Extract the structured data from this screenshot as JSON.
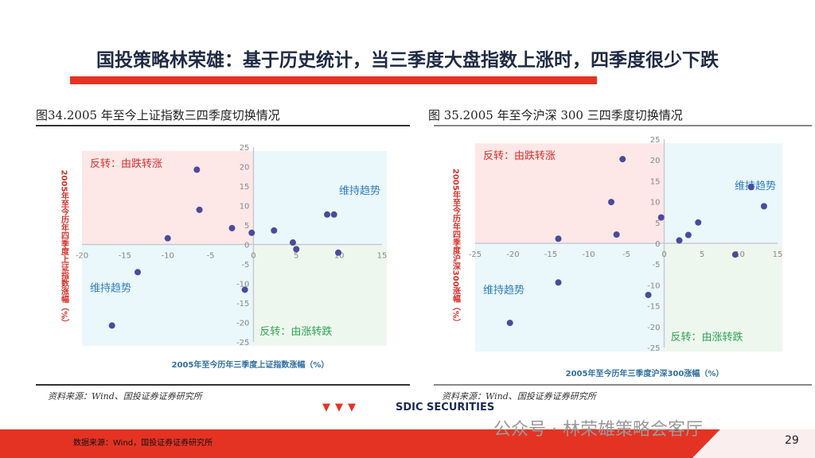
{
  "header": {
    "title": "国投策略林荣雄：基于历史统计，当三季度大盘指数上涨时，四季度很少下跌"
  },
  "colors": {
    "accent": "#e53323",
    "point": "#4b4a9c",
    "reverse_up": "#d6312b",
    "trend": "#2f7fbf",
    "reverse_down": "#2fa352",
    "q_pink": "#fde7e7",
    "q_cyan": "#eaf7fb",
    "q_green": "#eef7ee"
  },
  "footer": {
    "source": "数据来源：Wind，国投证券证券研究所",
    "page": "29",
    "watermark": "公众号 · 林荣雄策略会客厅",
    "logo": "SDIC SECURITIES",
    "logo_mark": "▼▼▼"
  },
  "chart_data": [
    {
      "type": "scatter",
      "title": "图34.2005 年至今上证指数三四季度切换情况",
      "xlabel": "2005年至今历年三季度上证指数涨幅（%）",
      "ylabel": "2005年至今历年四季度上证指数涨幅（%）",
      "xlim": [
        -20,
        15
      ],
      "ylim": [
        -25,
        25
      ],
      "xticks": [
        -20,
        -15,
        -10,
        -5,
        0,
        5,
        10,
        15
      ],
      "yticks": [
        25,
        20,
        15,
        10,
        5,
        0,
        -5,
        -10,
        -15,
        -20,
        -25
      ],
      "quadrant_labels": {
        "top_left": "反转：由跌转涨",
        "top_right": "维持趋势",
        "bottom_left": "维持趋势",
        "bottom_right": "反转：由涨转跌"
      },
      "grid": false,
      "source": "资料来源：Wind、国投证券证券研究所",
      "points": [
        [
          -6.6,
          19.2
        ],
        [
          -6.3,
          8.9
        ],
        [
          -2.5,
          4.2
        ],
        [
          -0.2,
          3.0
        ],
        [
          -10.0,
          1.6
        ],
        [
          2.4,
          3.6
        ],
        [
          4.6,
          0.5
        ],
        [
          5.0,
          -1.2
        ],
        [
          8.6,
          7.7
        ],
        [
          9.4,
          7.7
        ],
        [
          9.9,
          -2.1
        ],
        [
          -13.5,
          -7.1
        ],
        [
          -1.0,
          -11.6
        ],
        [
          -16.5,
          -20.8
        ]
      ]
    },
    {
      "type": "scatter",
      "title": "图 35.2005 年至今沪深 300 三四季度切换情况",
      "xlabel": "2005年至今历年三季度沪深300涨幅（%）",
      "ylabel": "2005年至今历年四季度沪深300涨幅（%）",
      "xlim": [
        -25,
        15
      ],
      "ylim": [
        -25,
        25
      ],
      "xticks": [
        -25,
        -20,
        -15,
        -10,
        -5,
        0,
        5,
        10,
        15
      ],
      "yticks": [
        25,
        20,
        15,
        10,
        5,
        0,
        -5,
        -10,
        -15,
        -20,
        -25
      ],
      "quadrant_labels": {
        "top_left": "反转：由跌转涨",
        "top_right": "维持趋势",
        "bottom_left": "维持趋势",
        "bottom_right": "反转：由涨转跌"
      },
      "grid": false,
      "source": "资料来源：Wind、国投证券证券研究所",
      "points": [
        [
          -5.5,
          20.2
        ],
        [
          -7.0,
          9.9
        ],
        [
          -6.3,
          2.1
        ],
        [
          -0.4,
          6.2
        ],
        [
          -14.0,
          1.1
        ],
        [
          2.0,
          0.7
        ],
        [
          3.2,
          2.0
        ],
        [
          4.5,
          5.0
        ],
        [
          11.5,
          13.5
        ],
        [
          13.2,
          8.9
        ],
        [
          9.4,
          -2.7
        ],
        [
          -14.0,
          -9.4
        ],
        [
          -2.1,
          -12.4
        ],
        [
          -20.4,
          -19.1
        ]
      ]
    }
  ]
}
